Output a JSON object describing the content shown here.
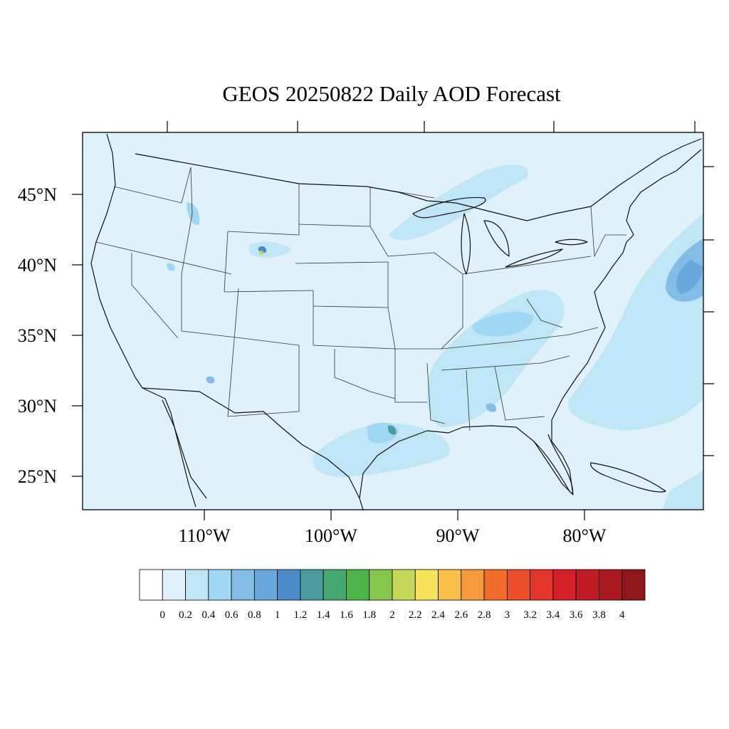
{
  "title": "GEOS 20250822 Daily AOD Forecast",
  "map": {
    "lat_ticks": [
      "45°N",
      "40°N",
      "35°N",
      "30°N",
      "25°N"
    ],
    "lon_ticks": [
      "110°W",
      "100°W",
      "90°W",
      "80°W"
    ],
    "background_color": "#dff1fa"
  },
  "colorbar": {
    "labels": [
      "0",
      "0.2",
      "0.4",
      "0.6",
      "0.8",
      "1",
      "1.2",
      "1.4",
      "1.6",
      "1.8",
      "2",
      "2.2",
      "2.4",
      "2.6",
      "2.8",
      "3",
      "3.2",
      "3.4",
      "3.6",
      "3.8",
      "4"
    ],
    "colors": [
      "#ffffff",
      "#dff1fa",
      "#bfe5f6",
      "#a0d7f2",
      "#83bde6",
      "#69a8dc",
      "#4a8ac9",
      "#4a9a9e",
      "#45a870",
      "#4db44a",
      "#86c64d",
      "#c5d85a",
      "#f7e35a",
      "#f8bf47",
      "#f69a3e",
      "#f26d2c",
      "#ea4e2b",
      "#e1342a",
      "#d32028",
      "#bf1b25",
      "#a8191f",
      "#8e1519"
    ]
  }
}
